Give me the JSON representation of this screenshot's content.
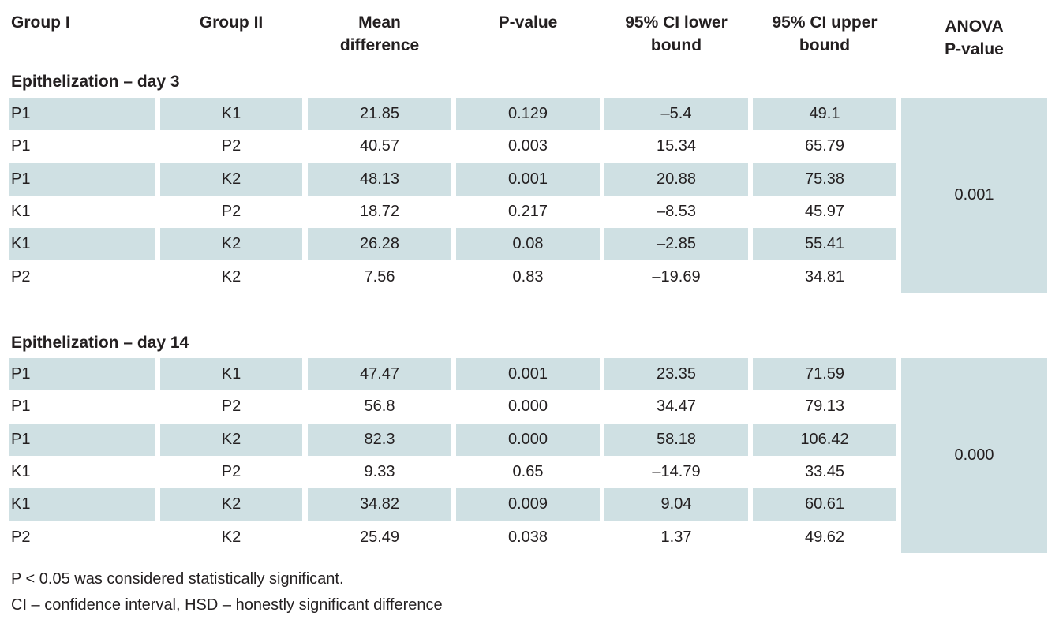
{
  "headers": {
    "group1": "Group I",
    "group2": "Group II",
    "mean": [
      "Mean",
      "difference"
    ],
    "pvalue": "P-value",
    "ci_lower": [
      "95% CI lower",
      "bound"
    ],
    "ci_upper": [
      "95% CI upper",
      "bound"
    ],
    "anova": [
      "ANOVA",
      "P-value"
    ]
  },
  "sections": [
    {
      "title": "Epithelization – day 3",
      "anova_p": "0.001",
      "rows": [
        {
          "g1": "P1",
          "g2": "K1",
          "mean": "21.85",
          "p": "0.129",
          "lo": "–5.4",
          "hi": "49.1"
        },
        {
          "g1": "P1",
          "g2": "P2",
          "mean": "40.57",
          "p": "0.003",
          "lo": "15.34",
          "hi": "65.79"
        },
        {
          "g1": "P1",
          "g2": "K2",
          "mean": "48.13",
          "p": "0.001",
          "lo": "20.88",
          "hi": "75.38"
        },
        {
          "g1": "K1",
          "g2": "P2",
          "mean": "18.72",
          "p": "0.217",
          "lo": "–8.53",
          "hi": "45.97"
        },
        {
          "g1": "K1",
          "g2": "K2",
          "mean": "26.28",
          "p": "0.08",
          "lo": "–2.85",
          "hi": "55.41"
        },
        {
          "g1": "P2",
          "g2": "K2",
          "mean": "7.56",
          "p": "0.83",
          "lo": "–19.69",
          "hi": "34.81"
        }
      ]
    },
    {
      "title": "Epithelization – day 14",
      "anova_p": "0.000",
      "rows": [
        {
          "g1": "P1",
          "g2": "K1",
          "mean": "47.47",
          "p": "0.001",
          "lo": "23.35",
          "hi": "71.59"
        },
        {
          "g1": "P1",
          "g2": "P2",
          "mean": "56.8",
          "p": "0.000",
          "lo": "34.47",
          "hi": "79.13"
        },
        {
          "g1": "P1",
          "g2": "K2",
          "mean": "82.3",
          "p": "0.000",
          "lo": "58.18",
          "hi": "106.42"
        },
        {
          "g1": "K1",
          "g2": "P2",
          "mean": "9.33",
          "p": "0.65",
          "lo": "–14.79",
          "hi": "33.45"
        },
        {
          "g1": "K1",
          "g2": "K2",
          "mean": "34.82",
          "p": "0.009",
          "lo": "9.04",
          "hi": "60.61"
        },
        {
          "g1": "P2",
          "g2": "K2",
          "mean": "25.49",
          "p": "0.038",
          "lo": "1.37",
          "hi": "49.62"
        }
      ]
    }
  ],
  "footnotes": [
    "P < 0.05 was considered statistically significant.",
    "CI – confidence interval, HSD – honestly significant difference"
  ],
  "colors": {
    "shade": "#cfe0e3",
    "text": "#231f20"
  }
}
